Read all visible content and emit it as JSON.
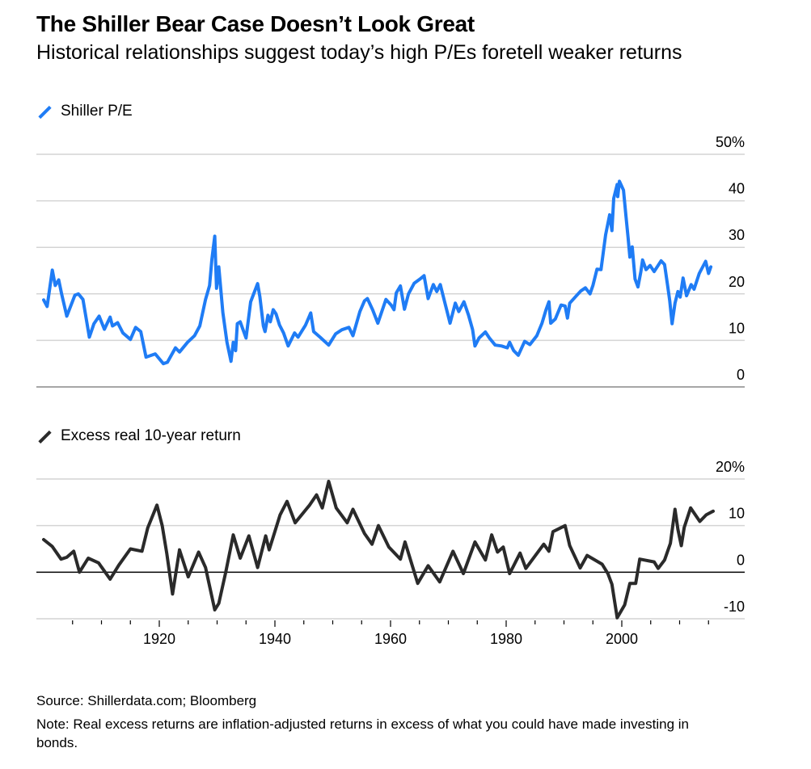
{
  "header": {
    "title": "The Shiller Bear Case Doesn’t Look Great",
    "subtitle": "Historical relationships suggest today’s high P/Es foretell weaker returns"
  },
  "footer": {
    "source": "Source: Shillerdata.com; Bloomberg",
    "note": "Note: Real excess returns are inflation-adjusted returns in excess of what you could have made investing in bonds."
  },
  "colors": {
    "pe_line": "#1f7cf5",
    "return_line": "#2a2a2a",
    "grid": "#d4d4d4",
    "axis": "#000000"
  },
  "chart_data": [
    {
      "type": "line",
      "title": "Shiller P/E",
      "legend": "Shiller P/E",
      "legend_placement": "top-left",
      "ylabel": "",
      "ylim": [
        0,
        50
      ],
      "yticks": [
        0,
        10,
        20,
        30,
        40,
        50
      ],
      "ytick_labels": [
        "0",
        "10",
        "20",
        "30",
        "40",
        "50%"
      ],
      "xlim": [
        1900,
        2019
      ],
      "grid": true,
      "series": [
        {
          "name": "Shiller P/E",
          "x": [
            1900.0,
            1900.6,
            1901.5,
            1902.0,
            1902.6,
            1903.1,
            1904.0,
            1905.4,
            1906.0,
            1906.8,
            1907.9,
            1908.7,
            1909.6,
            1910.5,
            1911.5,
            1911.9,
            1912.8,
            1913.7,
            1915.0,
            1915.9,
            1916.8,
            1917.7,
            1919.3,
            1920.7,
            1921.4,
            1922.8,
            1923.5,
            1924.9,
            1926.1,
            1927.0,
            1928.0,
            1928.7,
            1929.1,
            1929.6,
            1929.9,
            1930.3,
            1931.0,
            1931.7,
            1932.4,
            1932.8,
            1933.2,
            1933.5,
            1934.0,
            1935.0,
            1935.8,
            1937.0,
            1937.4,
            1938.0,
            1938.3,
            1938.8,
            1939.2,
            1939.7,
            1940.2,
            1940.8,
            1941.5,
            1942.3,
            1943.4,
            1944.0,
            1945.3,
            1946.2,
            1946.7,
            1947.8,
            1949.3,
            1950.5,
            1951.6,
            1952.8,
            1953.5,
            1954.7,
            1955.5,
            1956.0,
            1956.9,
            1957.8,
            1959.2,
            1960.1,
            1960.6,
            1961.0,
            1961.7,
            1962.4,
            1963.1,
            1964.1,
            1965.0,
            1965.8,
            1966.5,
            1967.4,
            1968.0,
            1968.6,
            1969.5,
            1970.3,
            1971.2,
            1971.8,
            1972.7,
            1973.5,
            1974.2,
            1974.6,
            1975.3,
            1976.4,
            1977.1,
            1978.1,
            1979.2,
            1980.2,
            1980.6,
            1981.3,
            1982.1,
            1983.2,
            1984.1,
            1985.3,
            1986.2,
            1986.9,
            1987.4,
            1987.7,
            1988.5,
            1989.5,
            1990.2,
            1990.6,
            1991.0,
            1992.0,
            1992.9,
            1993.7,
            1994.5,
            1995.0,
            1995.7,
            1996.4,
            1996.8,
            1997.2,
            1997.9,
            1998.3,
            1998.6,
            1999.2,
            1999.3,
            1999.6,
            2000.3,
            2000.7,
            2001.1,
            2001.4,
            2001.8,
            2002.3,
            2002.8,
            2003.3,
            2003.6,
            2004.2,
            2004.9,
            2005.6,
            2006.8,
            2007.4,
            2007.9,
            2008.3,
            2008.7,
            2009.2,
            2009.7,
            2010.1,
            2010.6,
            2011.2,
            2012.0,
            2012.5,
            2013.4,
            2014.5,
            2015.0,
            2015.4
          ],
          "y": [
            18.7,
            17.3,
            25.1,
            21.8,
            23.0,
            20.0,
            15.2,
            19.7,
            20.0,
            18.8,
            10.7,
            13.6,
            15.2,
            12.4,
            15.0,
            13.1,
            13.8,
            11.6,
            10.2,
            12.8,
            11.9,
            6.4,
            7.1,
            5.0,
            5.3,
            8.4,
            7.5,
            9.6,
            11.0,
            13.1,
            18.8,
            21.8,
            27.5,
            32.4,
            21.2,
            25.8,
            16.0,
            9.6,
            5.5,
            9.6,
            7.8,
            13.6,
            14.0,
            10.5,
            18.3,
            22.2,
            19.4,
            13.1,
            11.9,
            15.4,
            14.0,
            16.6,
            15.7,
            13.3,
            11.6,
            8.8,
            11.6,
            10.7,
            13.3,
            15.9,
            11.9,
            10.7,
            9.0,
            11.4,
            12.3,
            12.8,
            11.0,
            16.2,
            18.5,
            19.0,
            16.6,
            13.7,
            18.8,
            17.6,
            16.6,
            20.2,
            21.7,
            16.7,
            20.0,
            22.3,
            23.1,
            23.9,
            19.0,
            22.0,
            20.5,
            22.0,
            17.6,
            13.7,
            18.0,
            16.2,
            18.3,
            15.4,
            12.3,
            8.8,
            10.5,
            11.8,
            10.5,
            9.0,
            8.8,
            8.4,
            9.6,
            7.8,
            6.8,
            9.8,
            9.1,
            11.0,
            13.7,
            16.6,
            18.3,
            13.7,
            14.6,
            17.6,
            17.4,
            14.8,
            18.0,
            19.4,
            20.6,
            21.3,
            20.0,
            21.8,
            25.3,
            25.2,
            28.9,
            32.7,
            37.0,
            33.6,
            40.5,
            43.5,
            40.9,
            44.2,
            42.3,
            37.0,
            31.9,
            27.9,
            30.1,
            23.2,
            21.5,
            24.8,
            27.3,
            25.2,
            26.1,
            24.8,
            27.1,
            26.3,
            22.0,
            18.5,
            13.6,
            18.0,
            20.5,
            19.3,
            23.4,
            19.6,
            22.0,
            21.0,
            24.4,
            27.0,
            24.4,
            25.8
          ]
        }
      ]
    },
    {
      "type": "line",
      "title": "Excess real 10-year return",
      "legend": "Excess real 10-year return",
      "legend_placement": "top-left",
      "ylabel": "",
      "ylim": [
        -10,
        20
      ],
      "yticks": [
        -10,
        0,
        10,
        20
      ],
      "ytick_labels": [
        "-10",
        "0",
        "10",
        "20%"
      ],
      "xlim": [
        1900,
        2019
      ],
      "xticks_major": [
        1920,
        1940,
        1960,
        1980,
        2000
      ],
      "xtick_labels": [
        "1920",
        "1940",
        "1960",
        "1980",
        "2000"
      ],
      "xticks_minor_every": 5,
      "grid": true,
      "series": [
        {
          "name": "Excess real 10-year return",
          "x": [
            1900.0,
            1901.5,
            1903.0,
            1904.0,
            1905.2,
            1906.2,
            1907.7,
            1909.5,
            1911.5,
            1913.0,
            1915.0,
            1917.0,
            1918.0,
            1919.6,
            1920.5,
            1921.3,
            1922.3,
            1923.5,
            1925.0,
            1926.8,
            1928.0,
            1929.6,
            1930.3,
            1931.5,
            1932.8,
            1934.0,
            1935.5,
            1937.0,
            1938.4,
            1939.0,
            1940.9,
            1942.1,
            1943.5,
            1946.0,
            1947.2,
            1948.2,
            1949.3,
            1950.6,
            1952.5,
            1953.5,
            1955.5,
            1956.8,
            1957.9,
            1959.7,
            1961.7,
            1962.5,
            1964.7,
            1966.5,
            1968.5,
            1970.8,
            1972.6,
            1974.6,
            1976.4,
            1977.5,
            1978.5,
            1979.5,
            1980.6,
            1982.4,
            1983.4,
            1986.5,
            1987.4,
            1988.1,
            1990.2,
            1991.0,
            1992.8,
            1994.0,
            1996.6,
            1997.6,
            1998.3,
            1999.2,
            2000.5,
            2001.4,
            2002.4,
            2003.1,
            2005.6,
            2006.3,
            2007.4,
            2008.4,
            2009.2,
            2009.7,
            2010.3,
            2010.8,
            2011.9,
            2013.5,
            2014.6,
            2015.8
          ],
          "y": [
            7.0,
            5.5,
            2.8,
            3.2,
            4.5,
            0.0,
            3.0,
            2.0,
            -1.5,
            1.5,
            5.0,
            4.5,
            9.5,
            14.4,
            10.0,
            4.0,
            -4.7,
            4.8,
            -1.0,
            4.3,
            1.0,
            -8.1,
            -6.7,
            0.0,
            8.0,
            3.0,
            7.8,
            1.0,
            7.8,
            4.8,
            12.3,
            15.2,
            10.6,
            14.4,
            16.6,
            13.8,
            19.5,
            13.8,
            10.6,
            13.5,
            8.3,
            6.0,
            10.0,
            5.4,
            2.8,
            6.5,
            -2.4,
            1.4,
            -2.1,
            4.5,
            -0.3,
            6.5,
            2.6,
            8.0,
            4.3,
            5.4,
            -0.3,
            4.1,
            0.8,
            6.0,
            4.5,
            8.7,
            10.0,
            5.7,
            0.9,
            3.6,
            1.7,
            -0.3,
            -2.6,
            -9.8,
            -7.0,
            -2.4,
            -2.4,
            2.8,
            2.2,
            0.8,
            2.6,
            6.2,
            13.5,
            9.2,
            5.7,
            9.6,
            13.8,
            10.9,
            12.3,
            13.1
          ]
        }
      ]
    }
  ]
}
